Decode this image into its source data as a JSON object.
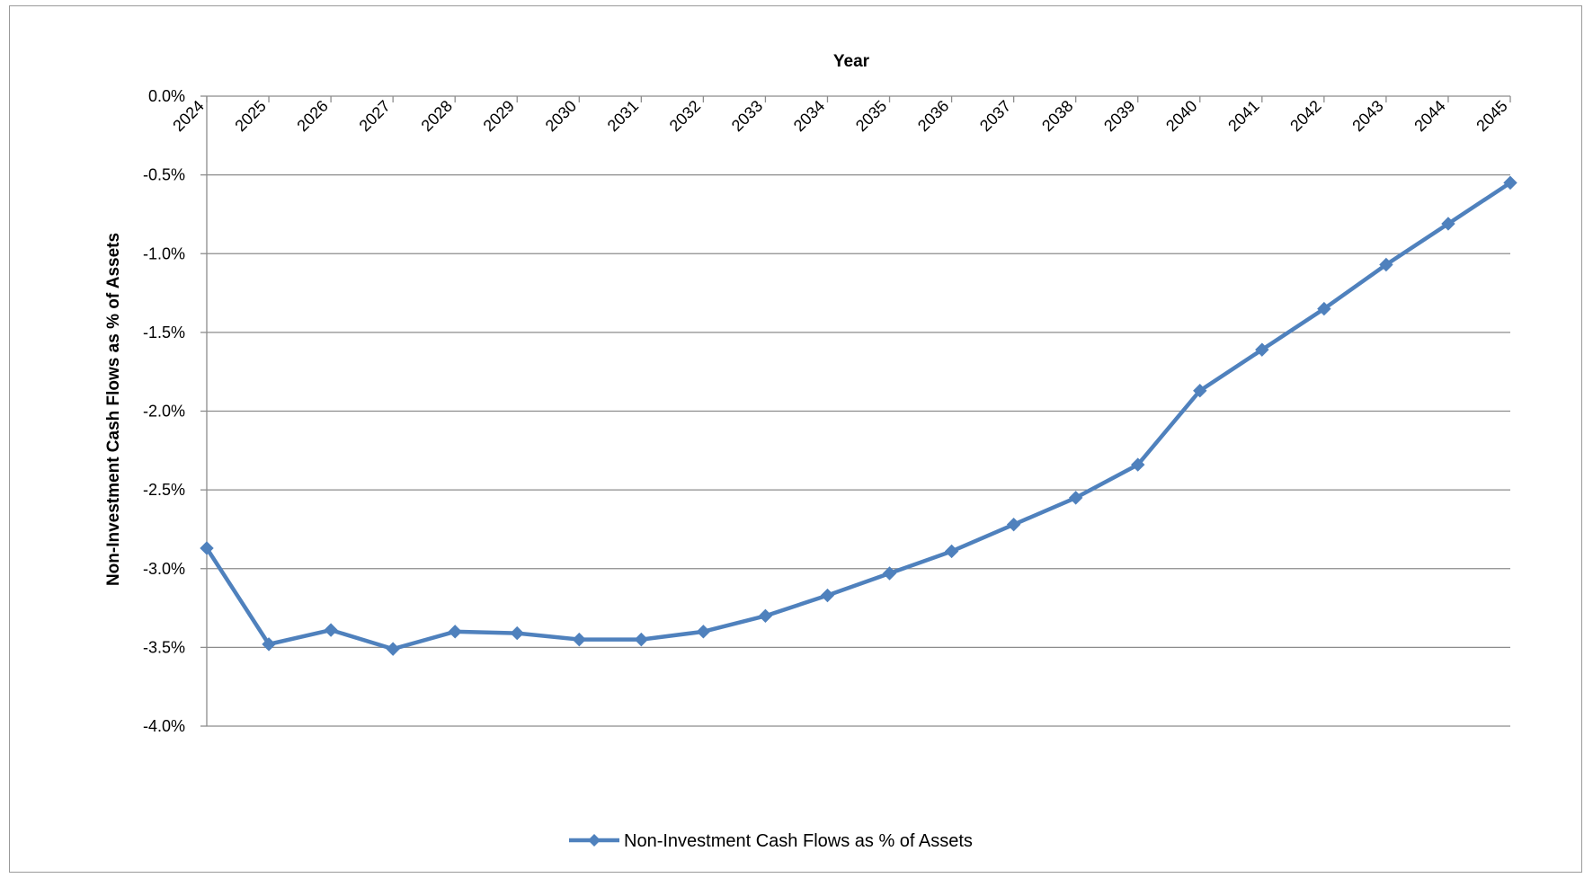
{
  "chart_data": {
    "type": "line",
    "title": "",
    "xlabel": "Year",
    "ylabel": "Non-Investment Cash Flows as % of Assets",
    "x_axis_position": "top",
    "categories": [
      "2024",
      "2025",
      "2026",
      "2027",
      "2028",
      "2029",
      "2030",
      "2031",
      "2032",
      "2033",
      "2034",
      "2035",
      "2036",
      "2037",
      "2038",
      "2039",
      "2040",
      "2041",
      "2042",
      "2043",
      "2044",
      "2045"
    ],
    "y_ticks": [
      "0.0%",
      "-0.5%",
      "-1.0%",
      "-1.5%",
      "-2.0%",
      "-2.5%",
      "-3.0%",
      "-3.5%",
      "-4.0%"
    ],
    "y_tick_values": [
      0.0,
      -0.5,
      -1.0,
      -1.5,
      -2.0,
      -2.5,
      -3.0,
      -3.5,
      -4.0
    ],
    "ylim": [
      -4.0,
      0.0
    ],
    "grid": "horizontal",
    "legend_position": "bottom",
    "series": [
      {
        "name": "Non-Investment Cash Flows as % of Assets",
        "color": "#4f81bd",
        "marker": "diamond",
        "values": [
          -2.87,
          -3.48,
          -3.39,
          -3.51,
          -3.4,
          -3.41,
          -3.45,
          -3.45,
          -3.4,
          -3.3,
          -3.17,
          -3.03,
          -2.89,
          -2.72,
          -2.55,
          -2.34,
          -1.87,
          -1.61,
          -1.35,
          -1.07,
          -0.81,
          -0.55
        ]
      }
    ]
  }
}
